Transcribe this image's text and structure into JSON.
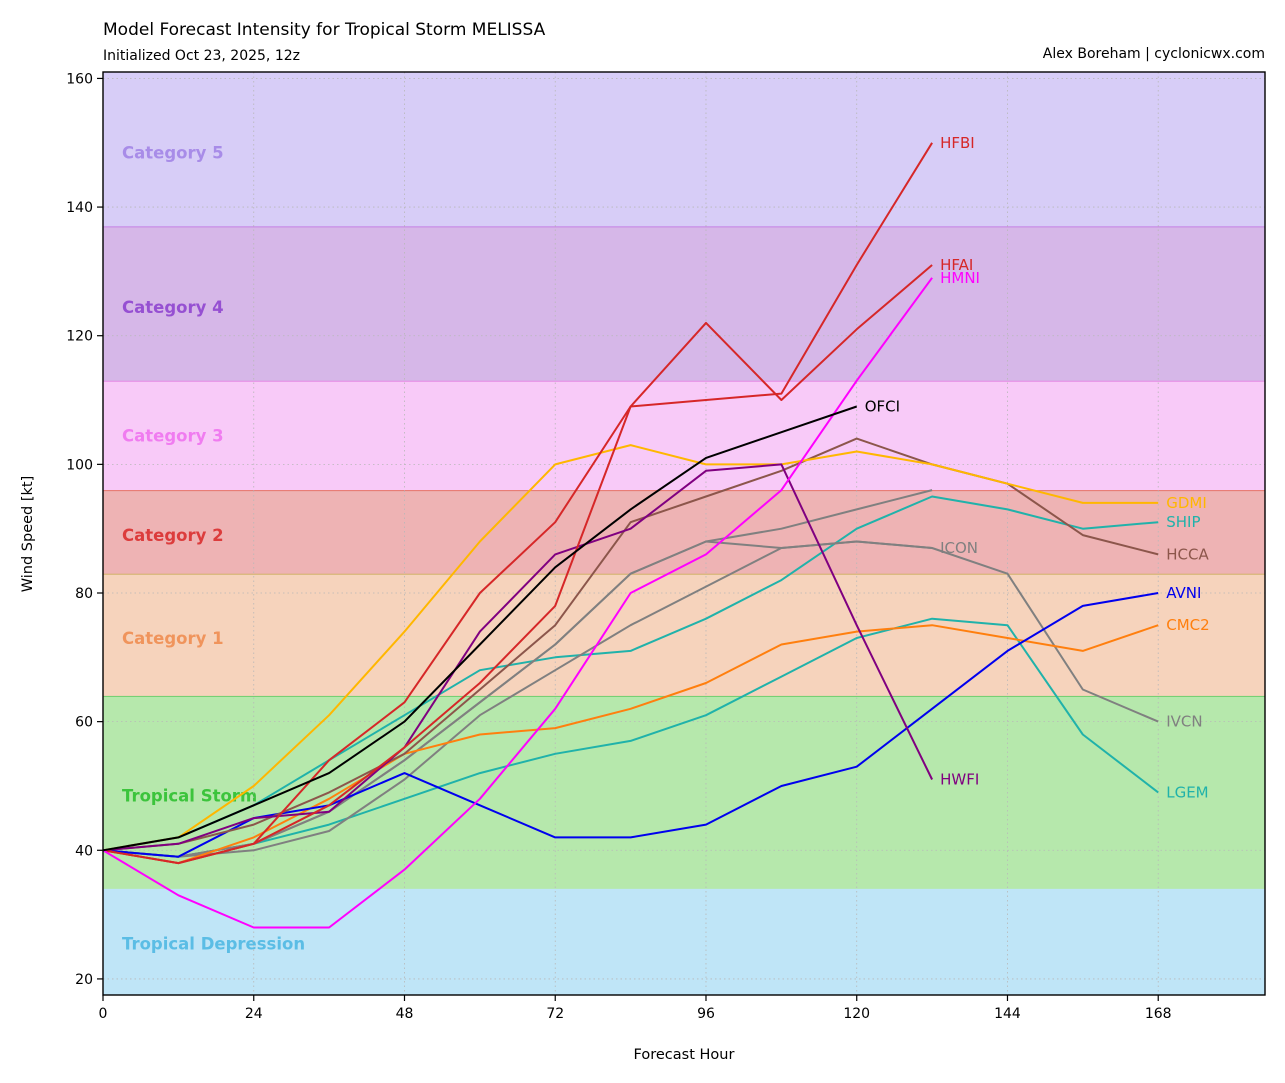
{
  "chart_data": {
    "type": "line",
    "title": "Model Forecast Intensity for Tropical Storm MELISSA",
    "subtitle": "Initialized Oct 23, 2025, 12z",
    "credit": "Alex Boreham | cyclonicwx.com",
    "xlabel": "Forecast Hour",
    "ylabel": "Wind Speed [kt]",
    "xlim": [
      0,
      185
    ],
    "ylim": [
      17.5,
      161
    ],
    "xticks": [
      0,
      24,
      48,
      72,
      96,
      120,
      144,
      168
    ],
    "yticks": [
      20,
      40,
      60,
      80,
      100,
      120,
      140,
      160
    ],
    "grid": true,
    "bands": [
      {
        "name": "Tropical Depression",
        "min": 0,
        "max": 34,
        "fill": "#bfe5f7",
        "edge": "#bfe5f7",
        "text": "#5bbde5",
        "label_y": 25.5
      },
      {
        "name": "Tropical Storm",
        "min": 34,
        "max": 64,
        "fill": "#b6e8ac",
        "edge": "#6ccd6c",
        "text": "#3cc43c",
        "label_y": 48.5
      },
      {
        "name": "Category 1",
        "min": 64,
        "max": 83,
        "fill": "#f6d3bc",
        "edge": "#d2b26c",
        "text": "#f0945c",
        "label_y": 73
      },
      {
        "name": "Category 2",
        "min": 83,
        "max": 96,
        "fill": "#eeb3b4",
        "edge": "#e7766a",
        "text": "#dc3c3c",
        "label_y": 89
      },
      {
        "name": "Category 3",
        "min": 96,
        "max": 113,
        "fill": "#f8caf8",
        "edge": "#e489e4",
        "text": "#f07cf0",
        "label_y": 104.5
      },
      {
        "name": "Category 4",
        "min": 113,
        "max": 137,
        "fill": "#d6b7e8",
        "edge": "#c580e4",
        "text": "#9650d2",
        "label_y": 124.5
      },
      {
        "name": "Category 5",
        "min": 137,
        "max": 200,
        "fill": "#d7cdf7",
        "edge": "#b58ce8",
        "text": "#a88ce8",
        "label_y": 148.5
      }
    ],
    "series": [
      {
        "name": "LGEM",
        "color": "#20b2aa",
        "x": [
          0,
          12,
          24,
          36,
          48,
          60,
          72,
          84,
          96,
          108,
          120,
          132,
          144,
          156,
          168
        ],
        "values": [
          40,
          39,
          41,
          44,
          48,
          52,
          55,
          57,
          61,
          67,
          73,
          76,
          75,
          58,
          49
        ],
        "label": true
      },
      {
        "name": "SHIP",
        "color": "#20b2aa",
        "x": [
          0,
          12,
          24,
          36,
          48,
          60,
          72,
          84,
          96,
          108,
          120,
          132,
          144,
          156,
          168
        ],
        "values": [
          40,
          42,
          47,
          54,
          61,
          68,
          70,
          71,
          76,
          82,
          90,
          95,
          93,
          90,
          91
        ],
        "label": true
      },
      {
        "name": "IVCN",
        "color": "#808080",
        "x": [
          0,
          12,
          24,
          36,
          48,
          60,
          72,
          84,
          96,
          108,
          120,
          132,
          144,
          156,
          168
        ],
        "values": [
          40,
          39,
          40,
          43,
          51,
          61,
          68,
          75,
          81,
          87,
          88,
          87,
          83,
          65,
          60
        ],
        "label": true
      },
      {
        "name": "ICON",
        "color": "#808080",
        "x": [
          0,
          12,
          24,
          36,
          48,
          60,
          72,
          84,
          96,
          108,
          120,
          132
        ],
        "values": [
          40,
          39,
          41,
          46,
          54,
          63,
          72,
          83,
          88,
          90,
          93,
          96
        ],
        "label": false
      },
      {
        "name": "ICON",
        "color": "#808080",
        "x": [
          0,
          12,
          24,
          36,
          48,
          60,
          72,
          84,
          96,
          108,
          120,
          132
        ],
        "values": [
          40,
          39,
          41,
          46,
          54,
          63,
          72,
          83,
          88,
          87,
          88,
          87
        ],
        "label": true
      },
      {
        "name": "CMC2",
        "color": "#ff7f0e",
        "x": [
          0,
          12,
          24,
          36,
          48,
          60,
          72,
          84,
          96,
          108,
          120,
          132,
          144,
          156,
          168
        ],
        "values": [
          40,
          38,
          42,
          48,
          55,
          58,
          59,
          62,
          66,
          72,
          74,
          75,
          73,
          71,
          75
        ],
        "label": true
      },
      {
        "name": "AVNI",
        "color": "#0000ee",
        "x": [
          0,
          12,
          24,
          36,
          48,
          60,
          72,
          84,
          96,
          108,
          120,
          132,
          144,
          156,
          168
        ],
        "values": [
          40,
          39,
          45,
          47,
          52,
          47,
          42,
          42,
          44,
          50,
          53,
          62,
          71,
          78,
          80
        ],
        "label": true
      },
      {
        "name": "HCCA",
        "color": "#8c564b",
        "x": [
          0,
          12,
          24,
          36,
          48,
          60,
          72,
          84,
          96,
          108,
          120,
          132,
          144,
          156,
          168
        ],
        "values": [
          40,
          41,
          44,
          49,
          55,
          65,
          75,
          91,
          95,
          99,
          104,
          100,
          97,
          89,
          86
        ],
        "label": true
      },
      {
        "name": "GDMI",
        "color": "#ffb700",
        "x": [
          0,
          12,
          24,
          36,
          48,
          60,
          72,
          84,
          96,
          108,
          120,
          132,
          144,
          156,
          168
        ],
        "values": [
          40,
          42,
          50,
          61,
          74,
          88,
          100,
          103,
          100,
          100,
          102,
          100,
          97,
          94,
          94
        ],
        "label": true
      },
      {
        "name": "HWFI",
        "color": "#800080",
        "x": [
          0,
          12,
          24,
          36,
          48,
          60,
          72,
          84,
          96,
          108,
          120,
          132
        ],
        "values": [
          40,
          41,
          45,
          46,
          56,
          74,
          86,
          90,
          99,
          100,
          75,
          51
        ],
        "label": true
      },
      {
        "name": "HFBI",
        "color": "#d62728",
        "x": [
          0,
          12,
          24,
          36,
          48,
          60,
          72,
          84,
          96,
          108,
          120,
          132
        ],
        "values": [
          40,
          38,
          41,
          54,
          63,
          80,
          91,
          109,
          110,
          111,
          131,
          150
        ],
        "label": true
      },
      {
        "name": "HFAI",
        "color": "#d62728",
        "x": [
          0,
          12,
          24,
          36,
          48,
          60,
          72,
          84,
          96,
          108,
          120,
          132
        ],
        "values": [
          40,
          38,
          41,
          47,
          56,
          66,
          78,
          109,
          122,
          110,
          121,
          131
        ],
        "label": true
      },
      {
        "name": "HMNI",
        "color": "#ff00ff",
        "x": [
          0,
          12,
          24,
          36,
          48,
          60,
          72,
          84,
          96,
          108,
          120,
          132
        ],
        "values": [
          40,
          33,
          28,
          28,
          37,
          48,
          62,
          80,
          86,
          96,
          113,
          129
        ],
        "label": true
      },
      {
        "name": "OFCI",
        "color": "#000000",
        "x": [
          0,
          12,
          24,
          36,
          48,
          60,
          72,
          84,
          96,
          108,
          120
        ],
        "values": [
          40,
          42,
          47,
          52,
          60,
          72,
          84,
          93,
          101,
          105,
          109
        ],
        "label": true
      }
    ]
  }
}
